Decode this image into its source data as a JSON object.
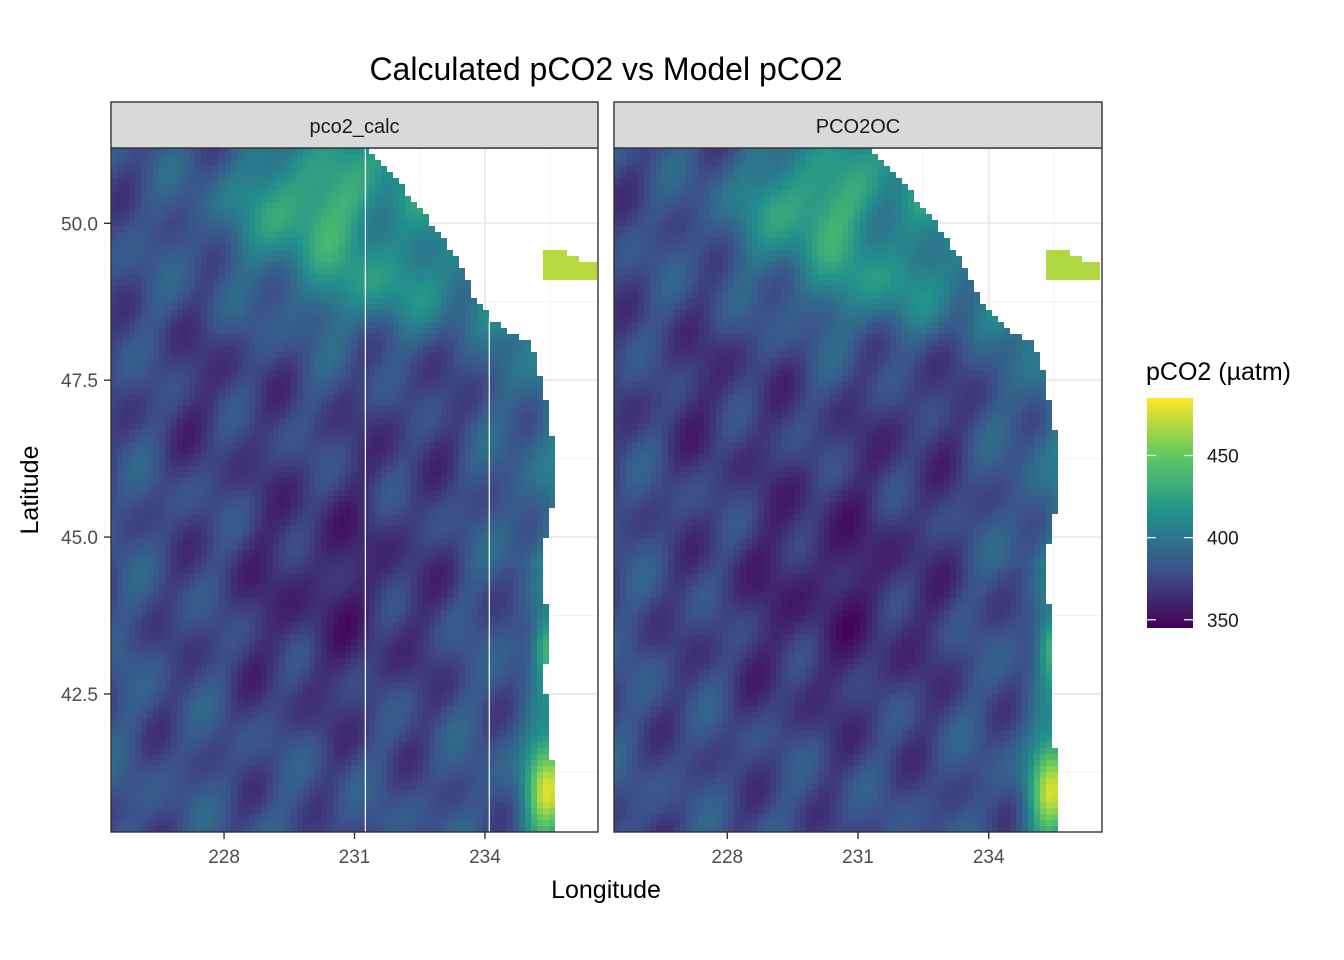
{
  "chart_data": {
    "type": "heatmap",
    "title": "Calculated pCO2 vs Model pCO2",
    "xlabel": "Longitude",
    "ylabel": "Latitude",
    "xlim": [
      225.4,
      236.6
    ],
    "ylim": [
      40.3,
      51.2
    ],
    "x_ticks": [
      "228",
      "231",
      "234"
    ],
    "x_tick_values": [
      228,
      231,
      234
    ],
    "y_ticks": [
      "42.5",
      "45.0",
      "47.5",
      "50.0"
    ],
    "y_tick_values": [
      42.5,
      45.0,
      47.5,
      50.0
    ],
    "grid": true,
    "panels": [
      {
        "name": "pco2_calc",
        "seam_lines_lon": [
          231.25,
          234.1
        ]
      },
      {
        "name": "PCO2OC",
        "seam_lines_lon": []
      }
    ],
    "colorbar": {
      "title": "pCO2 (µatm)",
      "min": 345,
      "max": 485,
      "ticks": [
        "350",
        "400",
        "450"
      ],
      "tick_values": [
        350,
        400,
        450
      ],
      "palette": "viridis",
      "colors": [
        "#440154",
        "#3b528b",
        "#21918c",
        "#5ec962",
        "#fde725"
      ],
      "placement": "right"
    },
    "coastline_lon_by_lat": [
      [
        40.3,
        235.6
      ],
      [
        41.0,
        235.6
      ],
      [
        41.8,
        235.5
      ],
      [
        42.5,
        235.4
      ],
      [
        43.0,
        235.4
      ],
      [
        43.6,
        235.5
      ],
      [
        44.2,
        235.3
      ],
      [
        45.0,
        235.4
      ],
      [
        45.6,
        235.6
      ],
      [
        46.2,
        235.6
      ],
      [
        46.9,
        235.5
      ],
      [
        47.4,
        235.3
      ],
      [
        47.9,
        235.2
      ],
      [
        48.1,
        235.0
      ],
      [
        48.3,
        234.5
      ],
      [
        48.5,
        234.1
      ],
      [
        48.9,
        233.7
      ],
      [
        49.4,
        233.4
      ],
      [
        49.9,
        232.9
      ],
      [
        50.3,
        232.4
      ],
      [
        50.7,
        232.0
      ],
      [
        51.0,
        231.5
      ],
      [
        51.2,
        231.3
      ]
    ]
  }
}
